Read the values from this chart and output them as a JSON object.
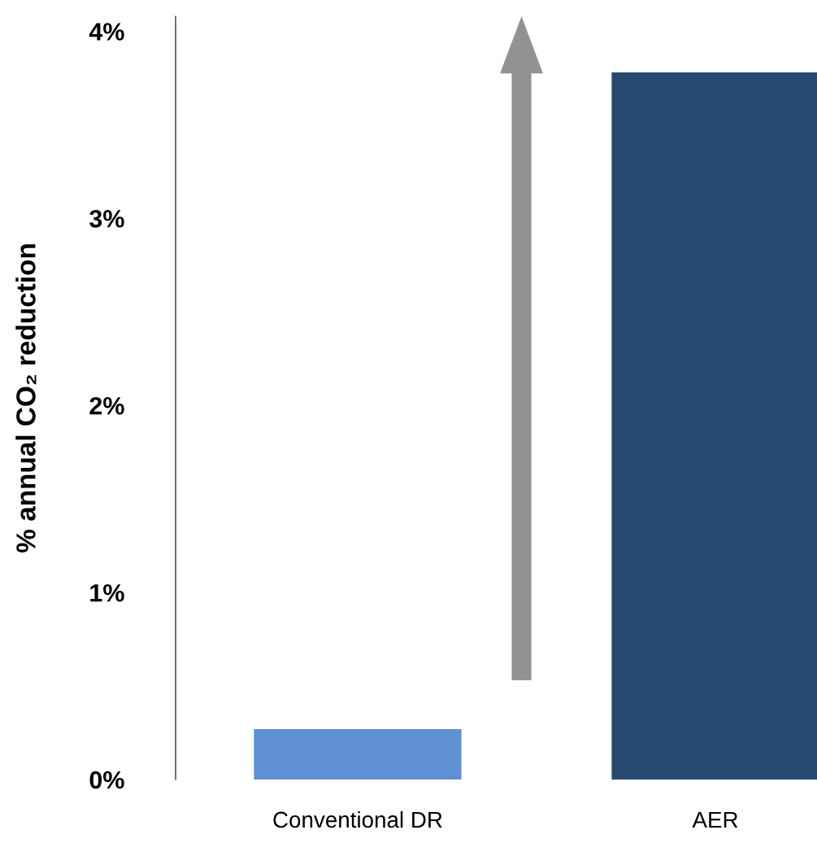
{
  "chart_data": {
    "type": "bar",
    "ylabel": "% annual CO₂ reduction",
    "categories": [
      "Conventional DR",
      "AER"
    ],
    "values": [
      0.27,
      3.78
    ],
    "colors": [
      "#5f90d4",
      "#27486f"
    ],
    "ylim": [
      0,
      4.08
    ],
    "yticks": [
      {
        "value": 0,
        "label": "0%"
      },
      {
        "value": 1,
        "label": "1%"
      },
      {
        "value": 2,
        "label": "2%"
      },
      {
        "value": 3,
        "label": "3%"
      },
      {
        "value": 4,
        "label": "4%"
      }
    ],
    "grid": false,
    "legend": false
  }
}
